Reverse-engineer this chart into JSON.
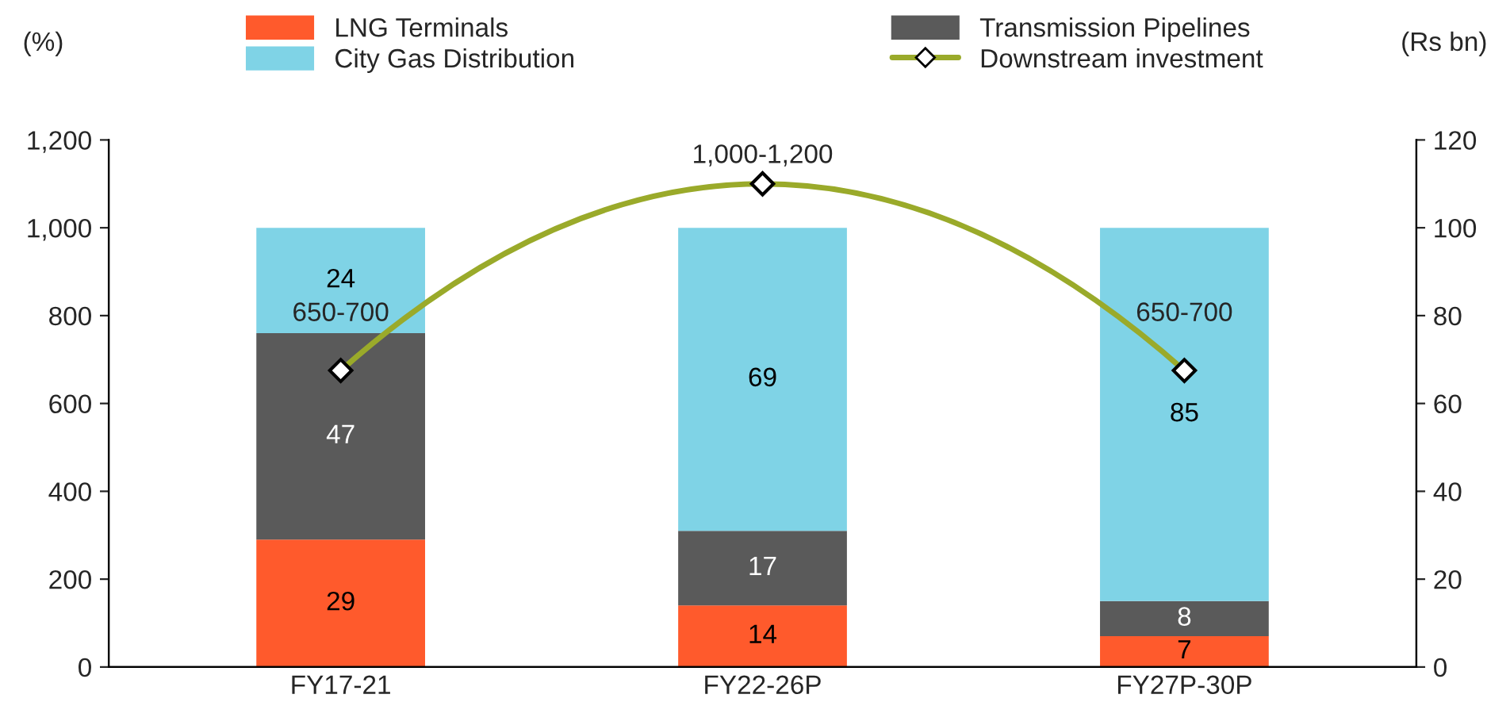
{
  "chart_data": {
    "type": "bar",
    "stacked": true,
    "categories": [
      "FY17-21",
      "FY22-26P",
      "FY27P-30P"
    ],
    "series": [
      {
        "name": "LNG Terminals",
        "color": "#ff5a2c",
        "values": [
          29,
          14,
          7
        ],
        "axis": "y2"
      },
      {
        "name": "Transmission Pipelines",
        "color": "#5a5a5a",
        "values": [
          47,
          17,
          8
        ],
        "axis": "y2"
      },
      {
        "name": "City Gas Distribution",
        "color": "#7fd3e6",
        "values": [
          24,
          69,
          85
        ],
        "axis": "y2"
      },
      {
        "name": "Downstream investment",
        "type": "line",
        "color": "#9aaa2a",
        "values": [
          675,
          1100,
          675
        ],
        "marker": "diamond",
        "line_style": "solid",
        "value_labels": [
          "650-700",
          "1,000-1,200",
          "650-700"
        ]
      }
    ],
    "ylabel": "(%)",
    "y2label": "(Rs bn)",
    "ylim": [
      0,
      1200
    ],
    "yticks": [
      0,
      {
        "value": 200,
        "label": "200"
      },
      {
        "value": 400,
        "label": "400"
      },
      {
        "value": 600,
        "label": "600"
      },
      {
        "value": 800,
        "label": "800"
      },
      {
        "value": 1000,
        "label": "1,000"
      },
      {
        "value": 1200,
        "label": "1,200"
      }
    ],
    "y2lim": [
      0,
      120
    ],
    "y2ticks": [
      0,
      20,
      40,
      60,
      80,
      100,
      120
    ],
    "data_labels": true,
    "grid": false,
    "legend": "top"
  }
}
